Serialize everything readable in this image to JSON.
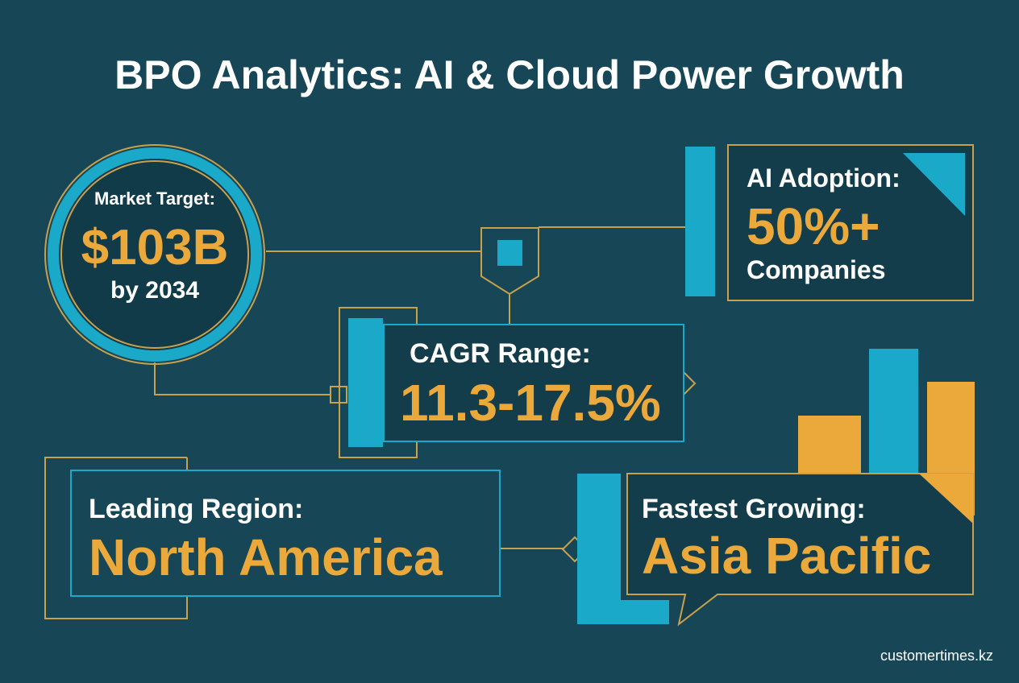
{
  "title": "BPO Analytics: AI & Cloud Power Growth",
  "market_target": {
    "label": "Market Target:",
    "value": "$103B",
    "note": "by 2034"
  },
  "ai_adoption": {
    "label": "AI Adoption:",
    "value": "50%+",
    "note": "Companies"
  },
  "cagr": {
    "label": "CAGR Range:",
    "value": "11.3-17.5%"
  },
  "leading_region": {
    "label": "Leading Region:",
    "value": "North America"
  },
  "fastest_growing": {
    "label": "Fastest Growing:",
    "value": "Asia Pacific"
  },
  "footer": "customertimes.kz"
}
